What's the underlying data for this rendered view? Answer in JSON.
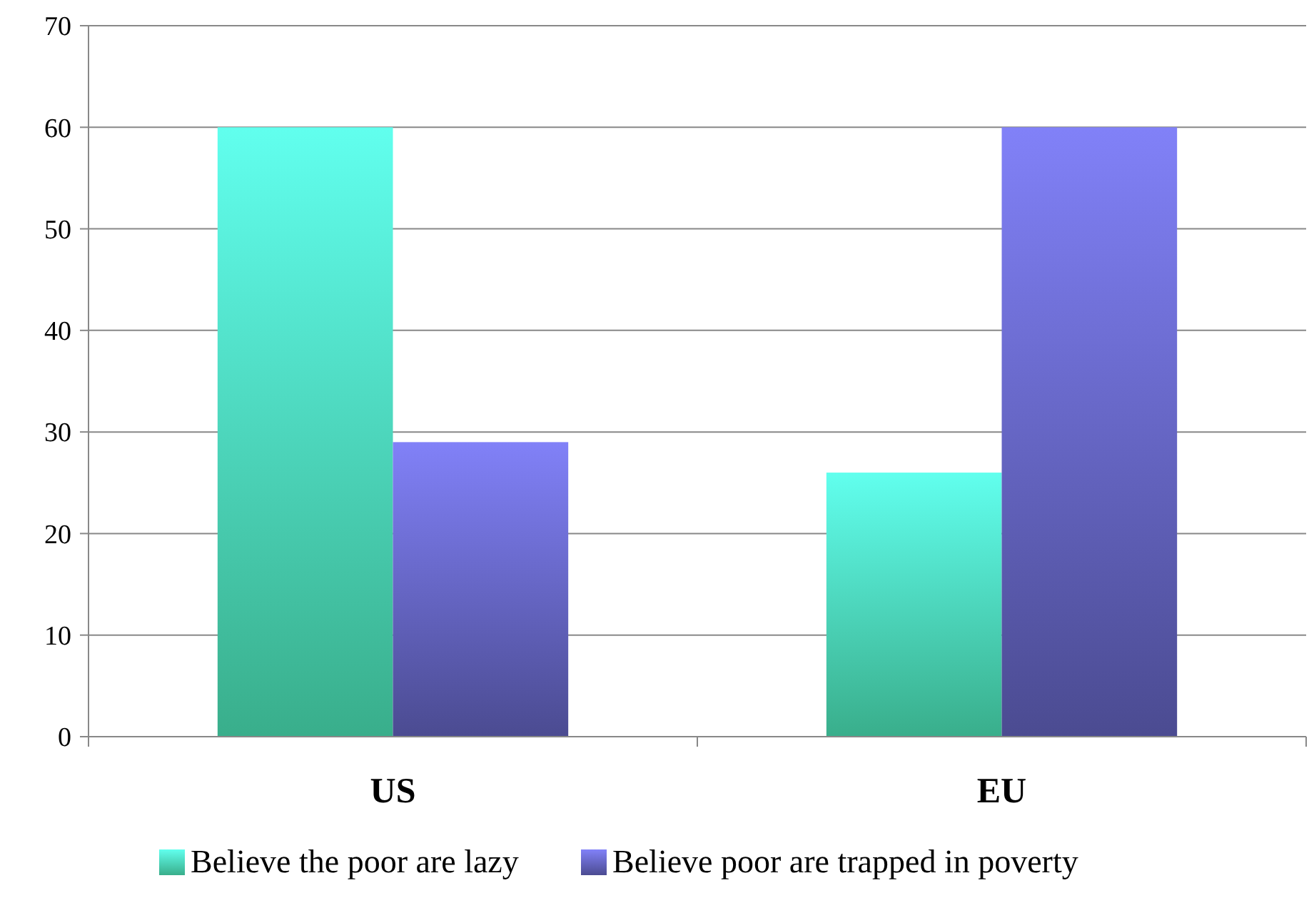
{
  "chart_data": {
    "type": "bar",
    "categories": [
      "US",
      "EU"
    ],
    "series": [
      {
        "name": "Believe the poor are lazy",
        "color": "#4ef0c0",
        "values": [
          60,
          26
        ]
      },
      {
        "name": "Believe poor are trapped in poverty",
        "color": "#6868c8",
        "values": [
          29,
          60
        ]
      }
    ],
    "ylim": [
      0,
      70
    ],
    "yticks": [
      0,
      10,
      20,
      30,
      40,
      50,
      60,
      70
    ],
    "grid": "y",
    "legend": "bottom"
  }
}
